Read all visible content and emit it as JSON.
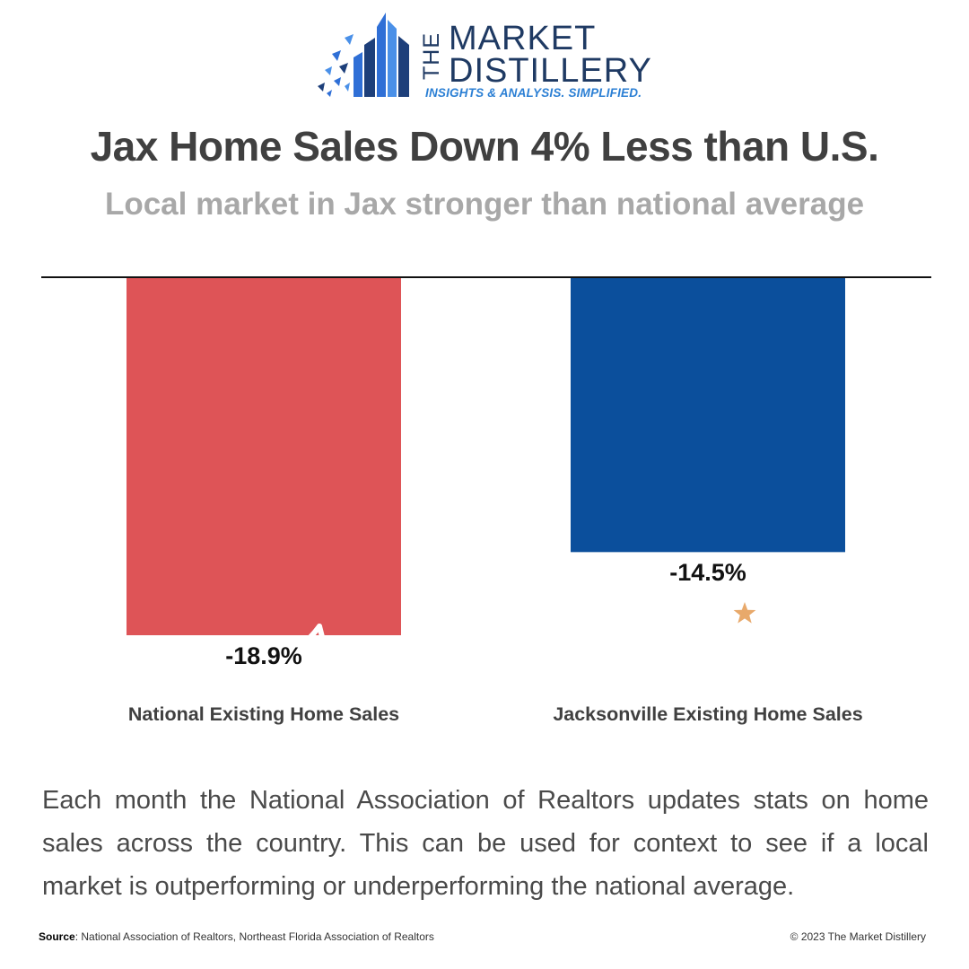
{
  "header": {
    "logo_the": "THE",
    "logo_line1": "MARKET",
    "logo_line2": "DISTILLERY",
    "logo_tagline": "INSIGHTS & ANALYSIS. SIMPLIFIED.",
    "title": "Jax Home Sales Down 4% Less than U.S.",
    "subtitle": "Local market in Jax stronger than national average"
  },
  "chart_data": {
    "type": "bar",
    "categories": [
      "National Existing Home Sales",
      "Jacksonville Existing Home Sales"
    ],
    "values": [
      -18.9,
      -14.5
    ],
    "value_labels": [
      "-18.9%",
      "-14.5%"
    ],
    "colors": [
      "#de5457",
      "#0b4f9c"
    ],
    "icons": [
      "us-flag-icon",
      "florida-map-icon"
    ],
    "ylim": [
      -18.9,
      0
    ],
    "grid": false,
    "legend": "none",
    "baseline_color": "#111111"
  },
  "body": {
    "text": "Each month the National Association of Realtors updates stats on home sales across the country. This can be used for context to see if a local market is outperforming or underperforming the national average."
  },
  "footer": {
    "source_label": "Source",
    "source_text": ": National Association of Realtors, Northeast Florida Association of Realtors",
    "copyright": "© 2023 The Market Distillery"
  },
  "colors": {
    "brand_navy": "#1f3a63",
    "brand_blue": "#2b7fd4",
    "star": "#e8a96b"
  }
}
